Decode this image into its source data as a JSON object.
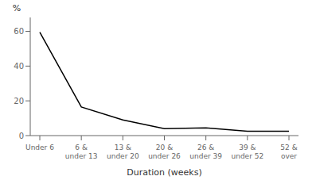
{
  "chart_data": {
    "type": "line",
    "categories": [
      "Under 6",
      "6 &\nunder 13",
      "13 &\nunder 20",
      "20 &\nunder 26",
      "26 &\nunder 39",
      "39 &\nunder 52",
      "52 &\nover"
    ],
    "values": [
      59.5,
      16.5,
      9.0,
      4.0,
      4.5,
      2.5,
      2.5
    ],
    "color": "#000000",
    "ylim": [
      0,
      68
    ],
    "yticks": [
      0,
      20,
      40,
      60
    ],
    "xlabel": "Duration (weeks)",
    "ylabel": "%"
  }
}
